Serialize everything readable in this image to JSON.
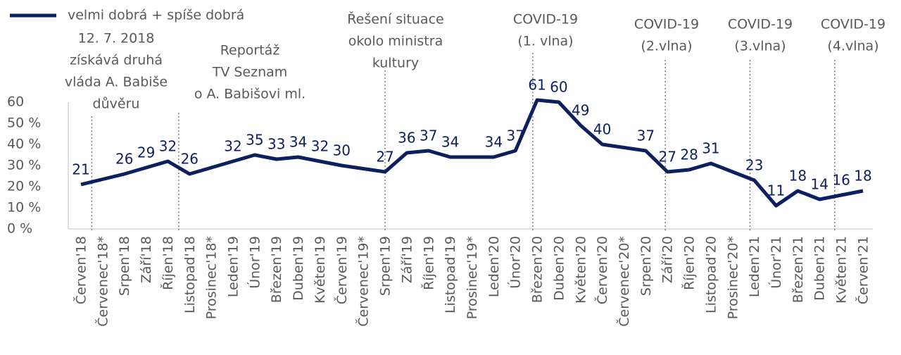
{
  "chart_data": {
    "type": "line",
    "legend": "velmi dobrá + spíše dobrá",
    "color": "#0c1f5f",
    "categories": [
      "Červen'18",
      "Červenec'18*",
      "Srpen'18",
      "Září'18",
      "Říjen'18",
      "Listopad'18",
      "Prosinec'18*",
      "Leden'19",
      "Únor'19",
      "Březen'19",
      "Duben'19",
      "Květen'19",
      "Červen'19",
      "Červenec'19*",
      "Srpen'19",
      "Září'19",
      "Říjen'19",
      "Listopad'19",
      "Prosinec'19*",
      "Leden'20",
      "Únor'20",
      "Březen'20",
      "Duben'20",
      "Květen'20",
      "Červen'20",
      "Červenec'20*",
      "Srpen'20",
      "Září'20",
      "Říjen'20",
      "Listopad'20",
      "Prosinec'20*",
      "Leden'21",
      "Únor'21",
      "Březen'21",
      "Duben'21",
      "Květen'21",
      "Červen'21"
    ],
    "values": [
      21,
      23.5,
      26,
      29,
      32,
      26,
      29,
      32,
      35,
      33,
      34,
      32,
      30,
      28.5,
      27,
      36,
      37,
      34,
      34,
      34,
      37,
      61,
      60,
      49,
      40,
      38.5,
      37,
      27,
      28,
      31,
      27,
      23,
      11,
      18,
      14,
      16,
      18
    ],
    "value_labels": [
      "21",
      null,
      "26",
      "29",
      "32",
      "26",
      null,
      "32",
      "35",
      "33",
      "34",
      "32",
      "30",
      null,
      "27",
      "36",
      "37",
      "34",
      null,
      "34",
      "37",
      "61",
      "60",
      "49",
      "40",
      null,
      "37",
      "27",
      "28",
      "31",
      null,
      "23",
      "11",
      "18",
      "14",
      "16",
      "18"
    ],
    "ylim": [
      0,
      60
    ],
    "yticks": [
      {
        "value": 0,
        "label": "0 %"
      },
      {
        "value": 10,
        "label": "10 %"
      },
      {
        "value": 20,
        "label": "20 %"
      },
      {
        "value": 30,
        "label": "30 %"
      },
      {
        "value": 40,
        "label": "40 %"
      },
      {
        "value": 50,
        "label": "50 %"
      },
      60
    ],
    "annotations": [
      {
        "x": 0.5,
        "lines": [
          "12. 7. 2018",
          "získává druhá",
          "vláda A. Babiše",
          "důvěru"
        ]
      },
      {
        "x": 4.5,
        "lines": [
          "Reportáž",
          "TV Seznam",
          "o A. Babišovi ml."
        ]
      },
      {
        "x": 14,
        "lines": [
          "Řešení situace",
          "okolo ministra",
          "kultury"
        ]
      },
      {
        "x": 20.8,
        "lines": [
          "COVID-19",
          "(1. vlna)"
        ]
      },
      {
        "x": 26.9,
        "lines": [
          "COVID-19",
          "(2.vlna)"
        ]
      },
      {
        "x": 30.8,
        "lines": [
          "COVID-19",
          "(3.vlna)"
        ]
      },
      {
        "x": 34.7,
        "lines": [
          "COVID-19",
          "(4.vlna)"
        ]
      }
    ]
  }
}
